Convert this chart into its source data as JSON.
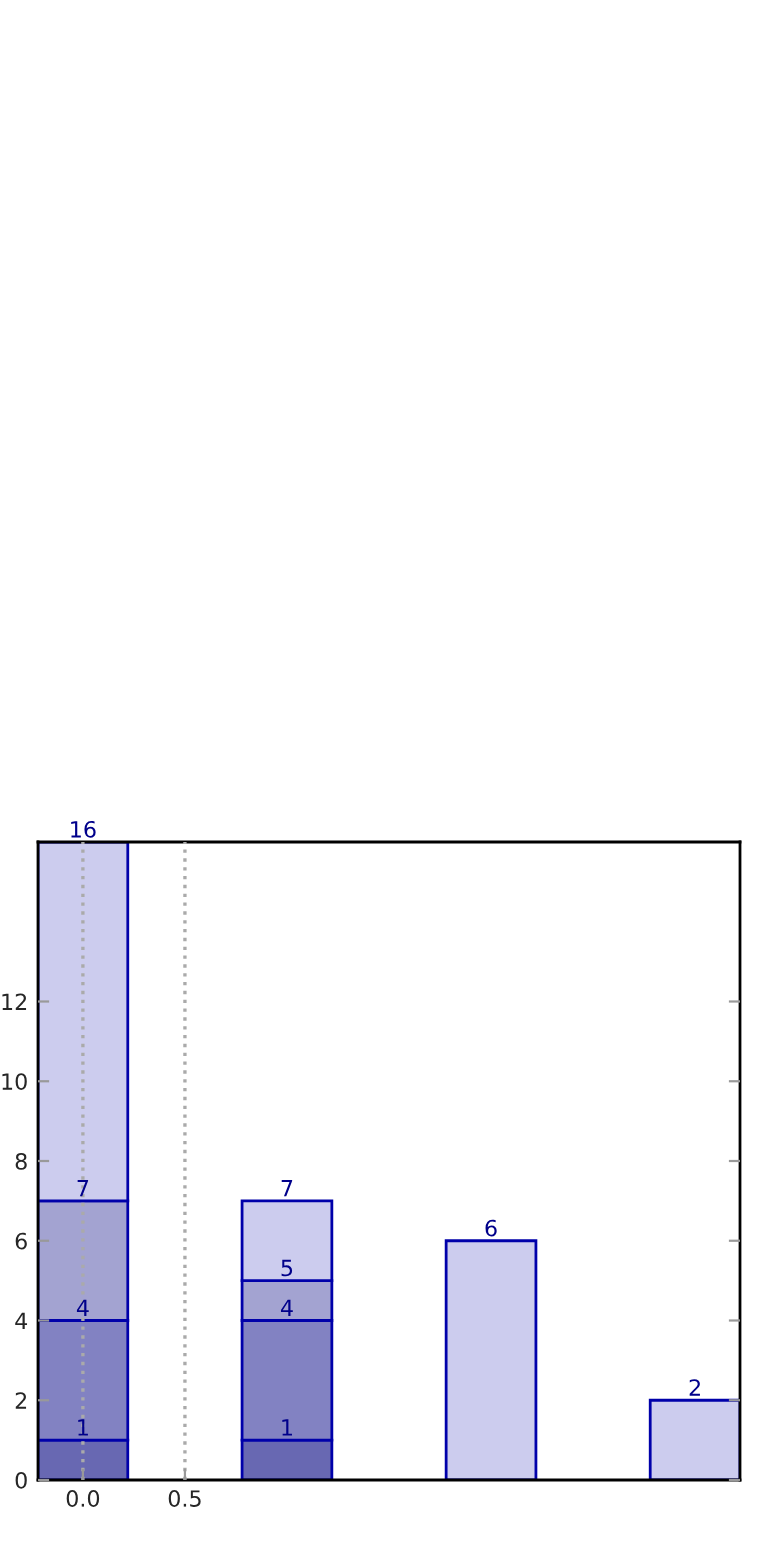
{
  "chart_data": {
    "type": "bar",
    "stacked": true,
    "x": [
      0,
      1,
      2,
      3
    ],
    "series": [
      {
        "color": "#6868b2",
        "values": [
          1,
          1,
          null,
          null
        ]
      },
      {
        "color": "#8282c2",
        "values": [
          3,
          3,
          null,
          null
        ]
      },
      {
        "color": "#a3a3d1",
        "values": [
          3,
          1,
          null,
          null
        ]
      },
      {
        "color": "#ccccee",
        "values": [
          9,
          2,
          6,
          2
        ]
      }
    ],
    "annotations": [
      {
        "text": "1",
        "x": 0,
        "y": 1
      },
      {
        "text": "4",
        "x": 0,
        "y": 4
      },
      {
        "text": "7",
        "x": 0,
        "y": 7
      },
      {
        "text": "16",
        "x": 0,
        "y": 16
      },
      {
        "text": "1",
        "x": 1,
        "y": 1
      },
      {
        "text": "4",
        "x": 1,
        "y": 4
      },
      {
        "text": "5",
        "x": 1,
        "y": 5
      },
      {
        "text": "7",
        "x": 1,
        "y": 7
      },
      {
        "text": "6",
        "x": 2,
        "y": 6
      },
      {
        "text": "2",
        "x": 3,
        "y": 2
      }
    ],
    "xlim": [
      -0.22,
      3.22
    ],
    "xticks": [
      {
        "value": 0,
        "label": "0.0"
      },
      {
        "value": 0.5,
        "label": "0.5"
      }
    ],
    "ylim": [
      0,
      16
    ],
    "yticks": [
      0,
      2,
      4,
      6,
      8,
      10,
      12
    ],
    "grid": "x"
  }
}
